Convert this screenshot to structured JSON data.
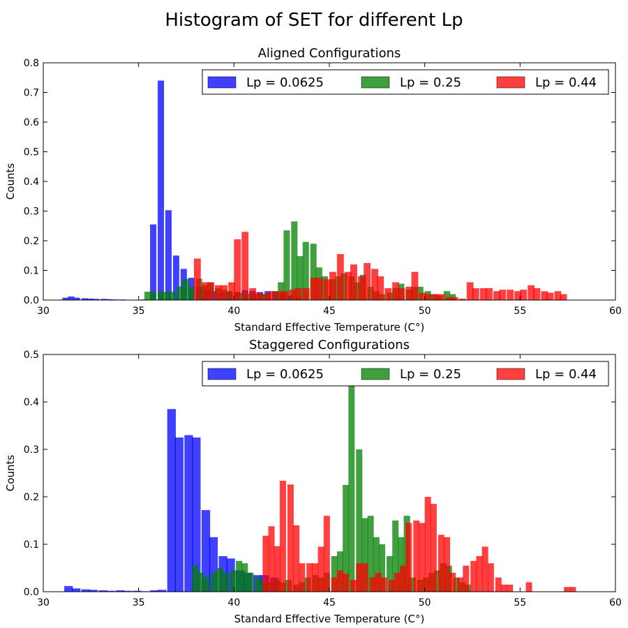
{
  "figure": {
    "title": "Histogram of SET for different Lp"
  },
  "colors": {
    "lp_0_0625": "#0000ff",
    "lp_0_25": "#008000",
    "lp_0_44": "#ff0000",
    "bar_alpha": 0.75
  },
  "chart_data": [
    {
      "type": "bar",
      "title": "Aligned Configurations",
      "xlabel": "Standard Effective Temperature (C°)",
      "ylabel": "Counts",
      "xlim": [
        30,
        60
      ],
      "ylim": [
        0,
        0.8
      ],
      "xticks": [
        30,
        35,
        40,
        45,
        50,
        55,
        60
      ],
      "yticks": [
        0.0,
        0.1,
        0.2,
        0.3,
        0.4,
        0.5,
        0.6,
        0.7,
        0.8
      ],
      "legend": {
        "placement": "top-right",
        "ncol": 3
      },
      "grid": false,
      "series": [
        {
          "name": "Lp = 0.0625",
          "color": "#0000ff",
          "bin_width": 0.33,
          "bins": [
            [
              31.0,
              0.008
            ],
            [
              31.3,
              0.012
            ],
            [
              31.6,
              0.008
            ],
            [
              32.0,
              0.006
            ],
            [
              32.3,
              0.005
            ],
            [
              32.6,
              0.004
            ],
            [
              33.0,
              0.004
            ],
            [
              33.3,
              0.003
            ],
            [
              33.6,
              0.002
            ],
            [
              34.0,
              0.002
            ],
            [
              34.3,
              0.001
            ],
            [
              35.1,
              0.002
            ],
            [
              35.6,
              0.255
            ],
            [
              36.0,
              0.74
            ],
            [
              36.4,
              0.303
            ],
            [
              36.8,
              0.15
            ],
            [
              37.2,
              0.105
            ],
            [
              37.6,
              0.075
            ],
            [
              38.0,
              0.045
            ],
            [
              38.4,
              0.035
            ],
            [
              38.8,
              0.03
            ],
            [
              39.2,
              0.025
            ],
            [
              39.6,
              0.028
            ],
            [
              40.0,
              0.026
            ],
            [
              40.4,
              0.033
            ],
            [
              40.8,
              0.03
            ],
            [
              41.2,
              0.027
            ],
            [
              41.6,
              0.03
            ],
            [
              42.0,
              0.028
            ],
            [
              42.4,
              0.022
            ],
            [
              42.8,
              0.015
            ],
            [
              43.2,
              0.01
            ]
          ]
        },
        {
          "name": "Lp = 0.25",
          "color": "#008000",
          "bin_width": 0.33,
          "bins": [
            [
              35.3,
              0.028
            ],
            [
              35.6,
              0.028
            ],
            [
              36.0,
              0.028
            ],
            [
              36.3,
              0.028
            ],
            [
              36.6,
              0.028
            ],
            [
              37.0,
              0.046
            ],
            [
              37.3,
              0.071
            ],
            [
              37.6,
              0.045
            ],
            [
              38.0,
              0.072
            ],
            [
              38.3,
              0.05
            ],
            [
              38.6,
              0.06
            ],
            [
              39.0,
              0.04
            ],
            [
              39.3,
              0.035
            ],
            [
              39.6,
              0.03
            ],
            [
              40.0,
              0.028
            ],
            [
              40.3,
              0.024
            ],
            [
              40.6,
              0.022
            ],
            [
              41.0,
              0.018
            ],
            [
              41.3,
              0.02
            ],
            [
              41.6,
              0.022
            ],
            [
              42.0,
              0.03
            ],
            [
              42.3,
              0.06
            ],
            [
              42.6,
              0.235
            ],
            [
              43.0,
              0.265
            ],
            [
              43.3,
              0.148
            ],
            [
              43.6,
              0.196
            ],
            [
              44.0,
              0.19
            ],
            [
              44.3,
              0.11
            ],
            [
              44.6,
              0.08
            ],
            [
              45.0,
              0.07
            ],
            [
              45.3,
              0.08
            ],
            [
              45.6,
              0.09
            ],
            [
              46.0,
              0.08
            ],
            [
              46.3,
              0.06
            ],
            [
              46.6,
              0.085
            ],
            [
              47.0,
              0.045
            ],
            [
              47.3,
              0.03
            ],
            [
              47.6,
              0.02
            ],
            [
              48.0,
              0.025
            ],
            [
              48.3,
              0.04
            ],
            [
              48.6,
              0.055
            ],
            [
              49.0,
              0.035
            ],
            [
              49.3,
              0.045
            ],
            [
              49.6,
              0.045
            ],
            [
              50.0,
              0.03
            ],
            [
              50.3,
              0.02
            ],
            [
              50.6,
              0.015
            ],
            [
              51.0,
              0.03
            ],
            [
              51.3,
              0.02
            ]
          ]
        },
        {
          "name": "Lp = 0.44",
          "color": "#ff0000",
          "bin_width": 0.36,
          "bins": [
            [
              37.9,
              0.14
            ],
            [
              38.3,
              0.06
            ],
            [
              38.6,
              0.06
            ],
            [
              39.0,
              0.05
            ],
            [
              39.3,
              0.05
            ],
            [
              39.7,
              0.06
            ],
            [
              40.0,
              0.205
            ],
            [
              40.4,
              0.23
            ],
            [
              40.8,
              0.04
            ],
            [
              41.1,
              0.025
            ],
            [
              41.5,
              0.02
            ],
            [
              41.8,
              0.03
            ],
            [
              42.2,
              0.03
            ],
            [
              42.5,
              0.03
            ],
            [
              42.9,
              0.035
            ],
            [
              43.2,
              0.04
            ],
            [
              43.6,
              0.04
            ],
            [
              44.0,
              0.075
            ],
            [
              44.3,
              0.075
            ],
            [
              44.7,
              0.07
            ],
            [
              45.0,
              0.095
            ],
            [
              45.4,
              0.155
            ],
            [
              45.8,
              0.095
            ],
            [
              46.1,
              0.12
            ],
            [
              46.5,
              0.08
            ],
            [
              46.8,
              0.125
            ],
            [
              47.2,
              0.105
            ],
            [
              47.5,
              0.08
            ],
            [
              47.9,
              0.04
            ],
            [
              48.3,
              0.06
            ],
            [
              48.6,
              0.04
            ],
            [
              49.0,
              0.045
            ],
            [
              49.3,
              0.095
            ],
            [
              49.7,
              0.025
            ],
            [
              50.0,
              0.02
            ],
            [
              50.4,
              0.02
            ],
            [
              50.7,
              0.02
            ],
            [
              51.1,
              0.01
            ],
            [
              51.4,
              0.01
            ],
            [
              51.8,
              0.005
            ],
            [
              52.2,
              0.06
            ],
            [
              52.5,
              0.04
            ],
            [
              52.9,
              0.04
            ],
            [
              53.2,
              0.04
            ],
            [
              53.6,
              0.03
            ],
            [
              53.9,
              0.035
            ],
            [
              54.3,
              0.035
            ],
            [
              54.7,
              0.03
            ],
            [
              55.0,
              0.035
            ],
            [
              55.4,
              0.05
            ],
            [
              55.7,
              0.04
            ],
            [
              56.1,
              0.03
            ],
            [
              56.4,
              0.025
            ],
            [
              56.8,
              0.03
            ],
            [
              57.1,
              0.02
            ]
          ]
        }
      ]
    },
    {
      "type": "bar",
      "title": "Staggered Configurations",
      "xlabel": "Standard Effective Temperature (C°)",
      "ylabel": "Counts",
      "xlim": [
        30,
        60
      ],
      "ylim": [
        0,
        0.5
      ],
      "xticks": [
        30,
        35,
        40,
        45,
        50,
        55,
        60
      ],
      "yticks": [
        0.0,
        0.1,
        0.2,
        0.3,
        0.4,
        0.5
      ],
      "legend": {
        "placement": "top-right",
        "ncol": 3
      },
      "grid": false,
      "series": [
        {
          "name": "Lp = 0.0625",
          "color": "#0000ff",
          "bin_width": 0.45,
          "bins": [
            [
              31.1,
              0.012
            ],
            [
              31.5,
              0.007
            ],
            [
              32.0,
              0.005
            ],
            [
              32.4,
              0.004
            ],
            [
              32.9,
              0.003
            ],
            [
              33.3,
              0.002
            ],
            [
              33.8,
              0.003
            ],
            [
              34.2,
              0.002
            ],
            [
              34.7,
              0.002
            ],
            [
              35.1,
              0.001
            ],
            [
              35.6,
              0.003
            ],
            [
              36.0,
              0.004
            ],
            [
              36.5,
              0.385
            ],
            [
              36.9,
              0.325
            ],
            [
              37.4,
              0.33
            ],
            [
              37.8,
              0.325
            ],
            [
              38.3,
              0.172
            ],
            [
              38.7,
              0.115
            ],
            [
              39.2,
              0.075
            ],
            [
              39.6,
              0.07
            ],
            [
              40.1,
              0.045
            ],
            [
              40.5,
              0.04
            ],
            [
              41.0,
              0.035
            ],
            [
              41.4,
              0.035
            ],
            [
              41.9,
              0.03
            ]
          ]
        },
        {
          "name": "Lp = 0.25",
          "color": "#008000",
          "bin_width": 0.33,
          "bins": [
            [
              37.8,
              0.055
            ],
            [
              38.1,
              0.04
            ],
            [
              38.4,
              0.03
            ],
            [
              38.8,
              0.04
            ],
            [
              39.1,
              0.05
            ],
            [
              39.4,
              0.04
            ],
            [
              39.8,
              0.045
            ],
            [
              40.1,
              0.065
            ],
            [
              40.4,
              0.06
            ],
            [
              40.7,
              0.04
            ],
            [
              41.1,
              0.03
            ],
            [
              41.4,
              0.02
            ],
            [
              41.7,
              0.02
            ],
            [
              42.1,
              0.025
            ],
            [
              42.4,
              0.02
            ],
            [
              42.7,
              0.025
            ],
            [
              43.1,
              0.015
            ],
            [
              43.4,
              0.02
            ],
            [
              43.7,
              0.03
            ],
            [
              44.1,
              0.035
            ],
            [
              44.4,
              0.03
            ],
            [
              44.7,
              0.04
            ],
            [
              45.1,
              0.075
            ],
            [
              45.4,
              0.085
            ],
            [
              45.7,
              0.225
            ],
            [
              46.0,
              0.485
            ],
            [
              46.4,
              0.3
            ],
            [
              46.7,
              0.155
            ],
            [
              47.0,
              0.16
            ],
            [
              47.3,
              0.115
            ],
            [
              47.6,
              0.1
            ],
            [
              48.0,
              0.075
            ],
            [
              48.3,
              0.15
            ],
            [
              48.6,
              0.115
            ],
            [
              48.9,
              0.16
            ],
            [
              49.2,
              0.03
            ],
            [
              49.6,
              0.025
            ],
            [
              49.9,
              0.03
            ],
            [
              50.2,
              0.04
            ],
            [
              50.5,
              0.045
            ],
            [
              50.8,
              0.06
            ],
            [
              51.1,
              0.055
            ],
            [
              51.5,
              0.03
            ],
            [
              51.8,
              0.02
            ],
            [
              52.1,
              0.015
            ]
          ]
        },
        {
          "name": "Lp = 0.44",
          "color": "#ff0000",
          "bin_width": 0.33,
          "bins": [
            [
              41.5,
              0.118
            ],
            [
              41.8,
              0.138
            ],
            [
              42.1,
              0.096
            ],
            [
              42.4,
              0.234
            ],
            [
              42.8,
              0.226
            ],
            [
              43.1,
              0.14
            ],
            [
              43.4,
              0.06
            ],
            [
              43.8,
              0.06
            ],
            [
              44.1,
              0.06
            ],
            [
              44.4,
              0.095
            ],
            [
              44.7,
              0.16
            ],
            [
              45.1,
              0.03
            ],
            [
              45.4,
              0.045
            ],
            [
              45.7,
              0.038
            ],
            [
              46.1,
              0.025
            ],
            [
              46.4,
              0.06
            ],
            [
              46.7,
              0.06
            ],
            [
              47.1,
              0.03
            ],
            [
              47.4,
              0.04
            ],
            [
              47.7,
              0.03
            ],
            [
              48.1,
              0.025
            ],
            [
              48.4,
              0.04
            ],
            [
              48.7,
              0.055
            ],
            [
              49.0,
              0.145
            ],
            [
              49.4,
              0.15
            ],
            [
              49.7,
              0.145
            ],
            [
              50.0,
              0.2
            ],
            [
              50.3,
              0.185
            ],
            [
              50.7,
              0.12
            ],
            [
              51.0,
              0.115
            ],
            [
              51.3,
              0.04
            ],
            [
              51.7,
              0.03
            ],
            [
              52.0,
              0.055
            ],
            [
              52.4,
              0.065
            ],
            [
              52.7,
              0.075
            ],
            [
              53.0,
              0.095
            ],
            [
              53.3,
              0.06
            ],
            [
              53.7,
              0.03
            ],
            [
              54.0,
              0.015
            ],
            [
              54.3,
              0.015
            ],
            [
              55.3,
              0.02
            ],
            [
              57.3,
              0.01
            ],
            [
              57.6,
              0.01
            ]
          ]
        }
      ]
    }
  ]
}
